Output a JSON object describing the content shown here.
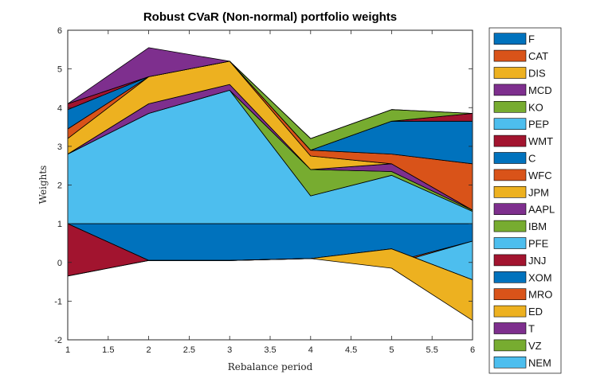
{
  "chart_data": {
    "type": "area",
    "title": "Robust CVaR (Non-normal) portfolio weights",
    "xlabel": "Rebalance period",
    "ylabel": "Weights",
    "xlim": [
      1,
      6
    ],
    "ylim": [
      -2,
      6
    ],
    "x": [
      1,
      2,
      3,
      4,
      5,
      6
    ],
    "xticks": [
      1,
      1.5,
      2,
      2.5,
      3,
      3.5,
      4,
      4.5,
      5,
      5.5,
      6
    ],
    "xtick_labels": [
      "1",
      "1.5",
      "2",
      "2.5",
      "3",
      "3.5",
      "4",
      "4.5",
      "5",
      "5.5",
      "6"
    ],
    "yticks": [
      -2,
      -1,
      0,
      1,
      2,
      3,
      4,
      5,
      6
    ],
    "ytick_labels": [
      "-2",
      "-1",
      "0",
      "1",
      "2",
      "3",
      "4",
      "5",
      "6"
    ],
    "baseline": 1,
    "grid": false,
    "legend_position": "outside-right",
    "positive_series": [
      {
        "name": "PEP",
        "color": "#4DBEEE",
        "top": [
          2.8,
          3.85,
          4.45,
          1.72,
          2.25,
          1.32
        ]
      },
      {
        "name": "KO",
        "color": "#77AC30",
        "top": [
          2.8,
          3.85,
          4.45,
          2.4,
          2.35,
          1.35
        ]
      },
      {
        "name": "MCD",
        "color": "#7E2F8E",
        "top": [
          2.8,
          4.1,
          4.6,
          2.4,
          2.55,
          1.35
        ]
      },
      {
        "name": "DIS",
        "color": "#EDB120",
        "top": [
          3.2,
          4.8,
          5.2,
          2.75,
          2.55,
          1.35
        ]
      },
      {
        "name": "CAT",
        "color": "#D95319",
        "top": [
          3.45,
          4.8,
          5.2,
          2.9,
          2.8,
          2.55
        ]
      },
      {
        "name": "F",
        "color": "#0072BD",
        "top": [
          3.95,
          4.8,
          5.2,
          2.9,
          3.65,
          3.65
        ]
      },
      {
        "name": "WMT",
        "color": "#A2142F",
        "top": [
          4.1,
          4.8,
          5.2,
          2.9,
          3.65,
          3.85
        ]
      },
      {
        "name": "VZ",
        "color": "#77AC30",
        "top": [
          4.1,
          4.8,
          5.2,
          3.2,
          3.95,
          3.85
        ]
      },
      {
        "name": "T",
        "color": "#7E2F8E",
        "top": [
          4.1,
          5.55,
          5.2,
          3.2,
          3.95,
          3.85
        ]
      }
    ],
    "negative_series": [
      {
        "name": "XOM",
        "color": "#0072BD",
        "bottom": [
          1,
          0.05,
          0.05,
          0.1,
          0,
          0.55
        ]
      },
      {
        "name": "MRO",
        "color": "#D95319",
        "bottom": [
          1,
          0.05,
          0.05,
          0.1,
          -0.05,
          0.55
        ]
      },
      {
        "name": "PFE",
        "color": "#4DBEEE",
        "bottom": [
          1,
          0.05,
          0.05,
          0.1,
          0.35,
          -0.45
        ]
      },
      {
        "name": "JNJ",
        "color": "#A2142F",
        "bottom": [
          -0.35,
          0.05,
          0.05,
          0.1,
          0.35,
          -0.45
        ]
      },
      {
        "name": "ED",
        "color": "#EDB120",
        "bottom": [
          -0.35,
          0.05,
          0.05,
          0.1,
          -0.15,
          -1.5
        ]
      }
    ],
    "legend": [
      {
        "name": "F",
        "color": "#0072BD"
      },
      {
        "name": "CAT",
        "color": "#D95319"
      },
      {
        "name": "DIS",
        "color": "#EDB120"
      },
      {
        "name": "MCD",
        "color": "#7E2F8E"
      },
      {
        "name": "KO",
        "color": "#77AC30"
      },
      {
        "name": "PEP",
        "color": "#4DBEEE"
      },
      {
        "name": "WMT",
        "color": "#A2142F"
      },
      {
        "name": "C",
        "color": "#0072BD"
      },
      {
        "name": "WFC",
        "color": "#D95319"
      },
      {
        "name": "JPM",
        "color": "#EDB120"
      },
      {
        "name": "AAPL",
        "color": "#7E2F8E"
      },
      {
        "name": "IBM",
        "color": "#77AC30"
      },
      {
        "name": "PFE",
        "color": "#4DBEEE"
      },
      {
        "name": "JNJ",
        "color": "#A2142F"
      },
      {
        "name": "XOM",
        "color": "#0072BD"
      },
      {
        "name": "MRO",
        "color": "#D95319"
      },
      {
        "name": "ED",
        "color": "#EDB120"
      },
      {
        "name": "T",
        "color": "#7E2F8E"
      },
      {
        "name": "VZ",
        "color": "#77AC30"
      },
      {
        "name": "NEM",
        "color": "#4DBEEE"
      }
    ]
  }
}
